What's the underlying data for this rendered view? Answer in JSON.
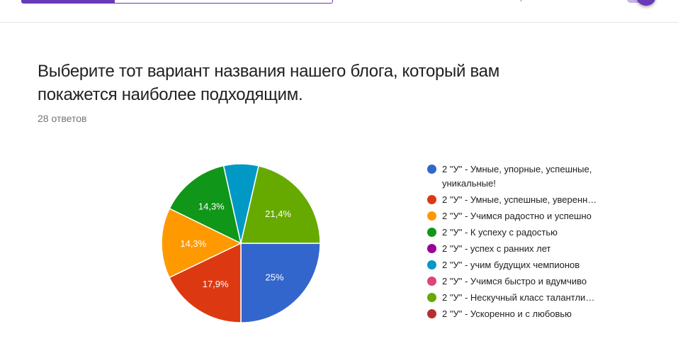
{
  "header": {
    "progress_percent": 30
  },
  "question": {
    "title": "Выберите тот вариант названия нашего блога, который вам покажется наиболее подходящим.",
    "response_count": "28 ответов"
  },
  "chart_data": {
    "type": "pie",
    "title": "Выберите тот вариант названия нашего блога, который вам покажется наиболее подходящим.",
    "total_responses": 28,
    "legend_position": "right",
    "start_angle_deg": 90,
    "slices": [
      {
        "label": "2 \"У\" - Умные, упорные, успешные, уникальные!",
        "value": 25.0,
        "count": 7,
        "color": "#3366cc",
        "display": "25%"
      },
      {
        "label": "2 \"У\" - Умные, успешные, уверенн…",
        "value": 17.9,
        "count": 5,
        "color": "#dc3912",
        "display": "17,9%"
      },
      {
        "label": "2 \"У\" - Учимся радостно и успешно",
        "value": 14.3,
        "count": 4,
        "color": "#ff9900",
        "display": "14,3%"
      },
      {
        "label": "2 \"У\" - К успеху с радостью",
        "value": 14.3,
        "count": 4,
        "color": "#109618",
        "display": "14,3%"
      },
      {
        "label": "2 \"У\" - успех с ранних лет",
        "value": 0,
        "count": 0,
        "color": "#990099",
        "display": ""
      },
      {
        "label": "2 \"У\" - учим будущих чемпионов",
        "value": 7.1,
        "count": 2,
        "color": "#0099c6",
        "display": ""
      },
      {
        "label": "2 \"У\" - Учимся быстро и вдумчиво",
        "value": 0,
        "count": 0,
        "color": "#dd4477",
        "display": ""
      },
      {
        "label": "2 \"У\" - Нескучный класс талантли…",
        "value": 21.4,
        "count": 6,
        "color": "#66aa00",
        "display": "21,4%"
      },
      {
        "label": "2 \"У\" - Ускоренно и с любовью",
        "value": 0,
        "count": 0,
        "color": "#b82e2e",
        "display": ""
      }
    ]
  },
  "legend": {
    "items": [
      {
        "label": "2 \"У\" - Умные, упорные, успешные, уникальные!",
        "color": "#3366cc"
      },
      {
        "label": "2 \"У\" - Умные, успешные, уверенн…",
        "color": "#dc3912"
      },
      {
        "label": "2 \"У\" - Учимся радостно и успешно",
        "color": "#ff9900"
      },
      {
        "label": "2 \"У\" - К успеху с радостью",
        "color": "#109618"
      },
      {
        "label": "2 \"У\" - успех с ранних лет",
        "color": "#990099"
      },
      {
        "label": "2 \"У\" - учим будущих чемпионов",
        "color": "#0099c6"
      },
      {
        "label": "2 \"У\" - Учимся быстро и вдумчиво",
        "color": "#dd4477"
      },
      {
        "label": "2 \"У\" - Нескучный класс талантли…",
        "color": "#66aa00"
      },
      {
        "label": "2 \"У\" - Ускоренно и с любовью",
        "color": "#b82e2e"
      }
    ]
  },
  "colors": {
    "accent": "#673ab7",
    "title_text": "#202124",
    "secondary_text": "#70757a"
  }
}
